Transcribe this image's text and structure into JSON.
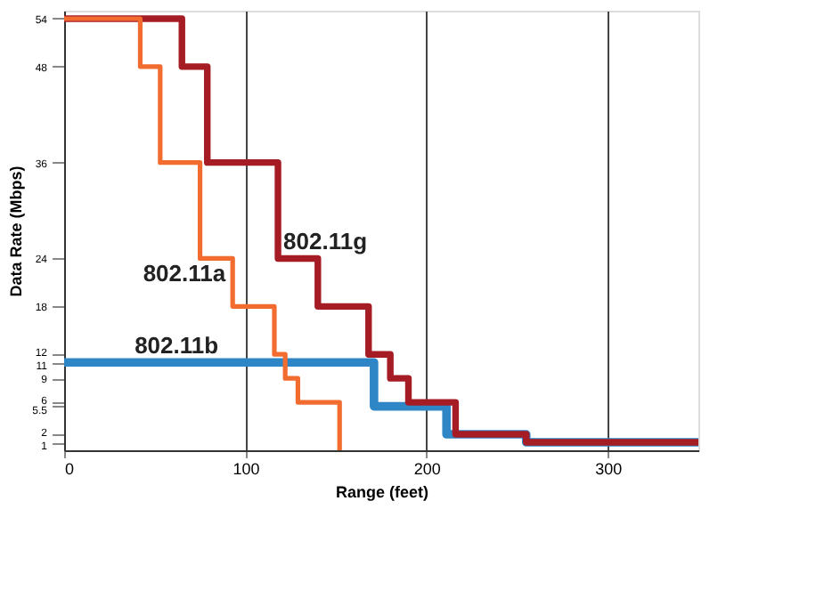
{
  "chart_data": {
    "type": "step",
    "xlabel": "Range (feet)",
    "ylabel": "Data Rate (Mbps)",
    "xlim": [
      0,
      350
    ],
    "xticks": [
      0,
      100,
      200,
      300
    ],
    "ylim": [
      0,
      55
    ],
    "yticks": [
      1,
      2,
      5.5,
      6,
      9,
      11,
      12,
      18,
      24,
      36,
      48,
      54
    ],
    "grid": "x",
    "marker": "none",
    "line_style": "solid",
    "series": [
      {
        "color": "#f26b2f",
        "x": [
          0,
          42,
          53,
          75,
          93,
          116,
          122,
          129,
          152
        ],
        "values": [
          54,
          48,
          36,
          24,
          18,
          12,
          9,
          6,
          0
        ]
      },
      {
        "color": "#a51c24",
        "x": [
          0,
          65,
          79,
          118,
          140,
          168,
          180,
          190,
          216,
          255,
          350
        ],
        "values": [
          54,
          48,
          36,
          24,
          18,
          12,
          9,
          6,
          2,
          1,
          1
        ]
      },
      {
        "color": "#2f86c6",
        "x": [
          0,
          171,
          211,
          255,
          350
        ],
        "values": [
          11,
          5.5,
          2,
          1,
          1
        ]
      }
    ],
    "annotations": [
      {
        "text": "802.11g",
        "x": 118,
        "y": 24
      },
      {
        "text": "802.11a",
        "x": 93,
        "y": 24
      },
      {
        "text": "802.11b",
        "x": 62,
        "y": 11
      }
    ]
  }
}
